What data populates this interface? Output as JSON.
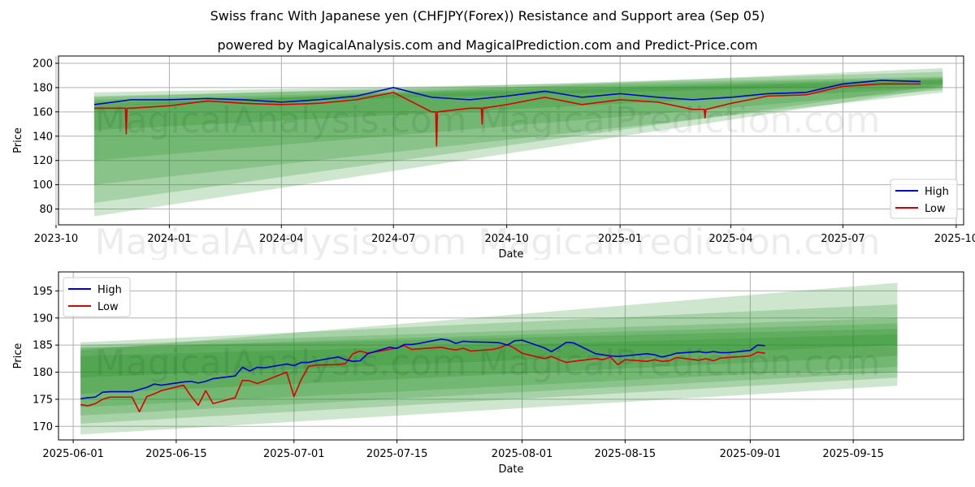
{
  "title": "Swiss franc With Japanese yen (CHFJPY(Forex)) Resistance and Support area (Sep 05)",
  "subtitle": "powered by MagicalAnalysis.com and MagicalPrediction.com and Predict-Price.com",
  "watermark": "MagicalAnalysis.com   MagicalPrediction.com",
  "colors": {
    "high": "#0000cc",
    "low": "#dd0000",
    "band": "#228b22",
    "grid": "#b0b0b0"
  },
  "chart_data": [
    {
      "type": "line",
      "xlabel": "Date",
      "ylabel": "Price",
      "ylim": [
        67,
        206
      ],
      "xlim": [
        "2023-10-03",
        "2025-10-07"
      ],
      "grid": true,
      "legend_position": "bottom-right",
      "x_ticks": [
        "2023-10",
        "2024-01",
        "2024-04",
        "2024-07",
        "2024-10",
        "2025-01",
        "2025-04",
        "2025-07",
        "2025-10"
      ],
      "y_ticks": [
        80,
        100,
        120,
        140,
        160,
        180,
        200
      ],
      "series": [
        {
          "name": "High",
          "x": [
            "2023-11-01",
            "2023-12-01",
            "2024-01-01",
            "2024-02-01",
            "2024-03-01",
            "2024-04-01",
            "2024-05-01",
            "2024-06-01",
            "2024-07-01",
            "2024-08-01",
            "2024-09-01",
            "2024-10-01",
            "2024-11-01",
            "2024-12-01",
            "2025-01-01",
            "2025-02-01",
            "2025-03-01",
            "2025-04-01",
            "2025-05-01",
            "2025-06-01",
            "2025-07-01",
            "2025-08-01",
            "2025-09-02"
          ],
          "values": [
            166,
            170,
            170,
            171,
            170,
            168,
            170,
            173,
            180,
            172,
            170,
            173,
            177,
            172,
            175,
            172,
            170,
            172,
            175,
            176,
            183,
            186,
            185
          ]
        },
        {
          "name": "Low",
          "x": [
            "2023-11-01",
            "2023-12-01",
            "2024-01-01",
            "2024-02-01",
            "2024-03-01",
            "2024-04-01",
            "2024-05-01",
            "2024-06-01",
            "2024-07-01",
            "2024-08-01",
            "2024-09-01",
            "2024-10-01",
            "2024-11-01",
            "2024-12-01",
            "2025-01-01",
            "2025-02-01",
            "2025-03-01",
            "2025-04-01",
            "2025-05-01",
            "2025-06-01",
            "2025-07-01",
            "2025-08-01",
            "2025-09-02"
          ],
          "values": [
            163,
            163,
            165,
            169,
            167,
            166,
            167,
            170,
            176,
            160,
            163,
            166,
            172,
            166,
            170,
            168,
            162,
            167,
            173,
            174,
            181,
            183,
            183
          ]
        }
      ],
      "spikes": [
        {
          "x": "2023-11-27",
          "low": 142
        },
        {
          "x": "2024-08-05",
          "low": 132
        },
        {
          "x": "2024-09-11",
          "low": 150
        },
        {
          "x": "2025-03-11",
          "low": 155
        }
      ],
      "bands": [
        {
          "x0": "2023-11-01",
          "lo0": 165,
          "hi0": 176,
          "x1": "2025-09-20",
          "lo1": 183,
          "hi1": 189
        },
        {
          "x0": "2023-11-01",
          "lo0": 145,
          "hi0": 173,
          "x1": "2025-09-20",
          "lo1": 180,
          "hi1": 188
        },
        {
          "x0": "2023-11-01",
          "lo0": 120,
          "hi0": 170,
          "x1": "2025-09-20",
          "lo1": 178,
          "hi1": 187
        },
        {
          "x0": "2023-11-01",
          "lo0": 100,
          "hi0": 168,
          "x1": "2025-09-20",
          "lo1": 176,
          "hi1": 186
        },
        {
          "x0": "2023-11-01",
          "lo0": 85,
          "hi0": 172,
          "x1": "2025-09-20",
          "lo1": 182,
          "hi1": 193
        },
        {
          "x0": "2023-11-01",
          "lo0": 74,
          "hi0": 165,
          "x1": "2025-09-20",
          "lo1": 180,
          "hi1": 196
        }
      ],
      "legend": [
        "High",
        "Low"
      ]
    },
    {
      "type": "line",
      "xlabel": "Date",
      "ylabel": "Price",
      "ylim": [
        167.5,
        198.5
      ],
      "xlim": [
        "2025-05-30",
        "2025-09-30"
      ],
      "grid": true,
      "legend_position": "top-left",
      "x_ticks": [
        "2025-06-01",
        "2025-06-15",
        "2025-07-01",
        "2025-07-15",
        "2025-08-01",
        "2025-08-15",
        "2025-09-01",
        "2025-09-15"
      ],
      "y_ticks": [
        170,
        175,
        180,
        185,
        190,
        195
      ],
      "series": [
        {
          "name": "High",
          "x": [
            "2025-06-02",
            "2025-06-03",
            "2025-06-04",
            "2025-06-05",
            "2025-06-06",
            "2025-06-09",
            "2025-06-10",
            "2025-06-11",
            "2025-06-12",
            "2025-06-13",
            "2025-06-16",
            "2025-06-17",
            "2025-06-18",
            "2025-06-19",
            "2025-06-20",
            "2025-06-23",
            "2025-06-24",
            "2025-06-25",
            "2025-06-26",
            "2025-06-27",
            "2025-06-30",
            "2025-07-01",
            "2025-07-02",
            "2025-07-03",
            "2025-07-04",
            "2025-07-07",
            "2025-07-08",
            "2025-07-09",
            "2025-07-10",
            "2025-07-11",
            "2025-07-14",
            "2025-07-15",
            "2025-07-16",
            "2025-07-17",
            "2025-07-18",
            "2025-07-21",
            "2025-07-22",
            "2025-07-23",
            "2025-07-24",
            "2025-07-25",
            "2025-07-28",
            "2025-07-29",
            "2025-07-30",
            "2025-07-31",
            "2025-08-01",
            "2025-08-04",
            "2025-08-05",
            "2025-08-06",
            "2025-08-07",
            "2025-08-08",
            "2025-08-11",
            "2025-08-12",
            "2025-08-13",
            "2025-08-14",
            "2025-08-15",
            "2025-08-18",
            "2025-08-19",
            "2025-08-20",
            "2025-08-21",
            "2025-08-22",
            "2025-08-25",
            "2025-08-26",
            "2025-08-27",
            "2025-08-28",
            "2025-08-29",
            "2025-09-01",
            "2025-09-02",
            "2025-09-03"
          ],
          "values": [
            175.1,
            175.3,
            175.4,
            176.3,
            176.4,
            176.4,
            176.8,
            177.2,
            177.8,
            177.6,
            178.2,
            178.3,
            178.0,
            178.3,
            178.8,
            179.3,
            180.9,
            180.2,
            180.9,
            180.8,
            181.5,
            181.2,
            181.8,
            181.8,
            182.1,
            182.8,
            182.3,
            182.0,
            182.1,
            183.4,
            184.6,
            184.4,
            185.1,
            185.1,
            185.3,
            186.1,
            185.9,
            185.3,
            185.7,
            185.6,
            185.5,
            185.4,
            185.0,
            185.8,
            185.9,
            184.5,
            183.8,
            184.6,
            185.5,
            185.4,
            183.4,
            183.2,
            183.0,
            182.9,
            183.0,
            183.4,
            183.2,
            182.8,
            183.1,
            183.5,
            183.8,
            183.6,
            183.8,
            183.6,
            183.6,
            184.0,
            185.0,
            184.9
          ]
        },
        {
          "name": "Low",
          "x": [
            "2025-06-02",
            "2025-06-03",
            "2025-06-04",
            "2025-06-05",
            "2025-06-06",
            "2025-06-09",
            "2025-06-10",
            "2025-06-11",
            "2025-06-12",
            "2025-06-13",
            "2025-06-16",
            "2025-06-17",
            "2025-06-18",
            "2025-06-19",
            "2025-06-20",
            "2025-06-23",
            "2025-06-24",
            "2025-06-25",
            "2025-06-26",
            "2025-06-27",
            "2025-06-30",
            "2025-07-01",
            "2025-07-02",
            "2025-07-03",
            "2025-07-04",
            "2025-07-07",
            "2025-07-08",
            "2025-07-09",
            "2025-07-10",
            "2025-07-11",
            "2025-07-14",
            "2025-07-15",
            "2025-07-16",
            "2025-07-17",
            "2025-07-18",
            "2025-07-21",
            "2025-07-22",
            "2025-07-23",
            "2025-07-24",
            "2025-07-25",
            "2025-07-28",
            "2025-07-29",
            "2025-07-30",
            "2025-07-31",
            "2025-08-01",
            "2025-08-04",
            "2025-08-05",
            "2025-08-06",
            "2025-08-07",
            "2025-08-08",
            "2025-08-11",
            "2025-08-12",
            "2025-08-13",
            "2025-08-14",
            "2025-08-15",
            "2025-08-18",
            "2025-08-19",
            "2025-08-20",
            "2025-08-21",
            "2025-08-22",
            "2025-08-25",
            "2025-08-26",
            "2025-08-27",
            "2025-08-28",
            "2025-08-29",
            "2025-09-01",
            "2025-09-02",
            "2025-09-03"
          ],
          "values": [
            174.0,
            173.8,
            174.2,
            175.0,
            175.4,
            175.4,
            172.7,
            175.5,
            176.0,
            176.6,
            177.6,
            175.6,
            173.9,
            176.6,
            174.2,
            175.3,
            178.5,
            178.4,
            177.9,
            178.4,
            180.0,
            175.5,
            178.7,
            181.1,
            181.3,
            181.4,
            181.6,
            183.4,
            183.9,
            183.5,
            184.2,
            184.5,
            184.9,
            184.2,
            184.3,
            184.6,
            184.3,
            184.1,
            184.4,
            183.9,
            184.2,
            184.5,
            185.1,
            184.4,
            183.5,
            182.5,
            182.9,
            182.3,
            181.8,
            182.0,
            182.5,
            182.3,
            182.8,
            181.4,
            182.3,
            182.0,
            182.3,
            182.0,
            182.1,
            182.7,
            182.2,
            182.5,
            182.1,
            182.6,
            182.7,
            183.0,
            183.7,
            183.5
          ]
        }
      ],
      "bands": [
        {
          "x0": "2025-06-02",
          "lo0": 179,
          "hi0": 184.5,
          "x1": "2025-09-21",
          "lo1": 185,
          "hi1": 188
        },
        {
          "x0": "2025-06-02",
          "lo0": 176,
          "hi0": 184.5,
          "x1": "2025-09-21",
          "lo1": 183,
          "hi1": 189
        },
        {
          "x0": "2025-06-02",
          "lo0": 173.5,
          "hi0": 185,
          "x1": "2025-09-21",
          "lo1": 181,
          "hi1": 190
        },
        {
          "x0": "2025-06-02",
          "lo0": 172,
          "hi0": 183,
          "x1": "2025-09-21",
          "lo1": 180,
          "hi1": 187
        },
        {
          "x0": "2025-06-02",
          "lo0": 170.5,
          "hi0": 185.5,
          "x1": "2025-09-21",
          "lo1": 179,
          "hi1": 192.5
        },
        {
          "x0": "2025-06-02",
          "lo0": 168.5,
          "hi0": 184,
          "x1": "2025-09-21",
          "lo1": 177.5,
          "hi1": 196.5
        }
      ],
      "legend": [
        "High",
        "Low"
      ]
    }
  ]
}
